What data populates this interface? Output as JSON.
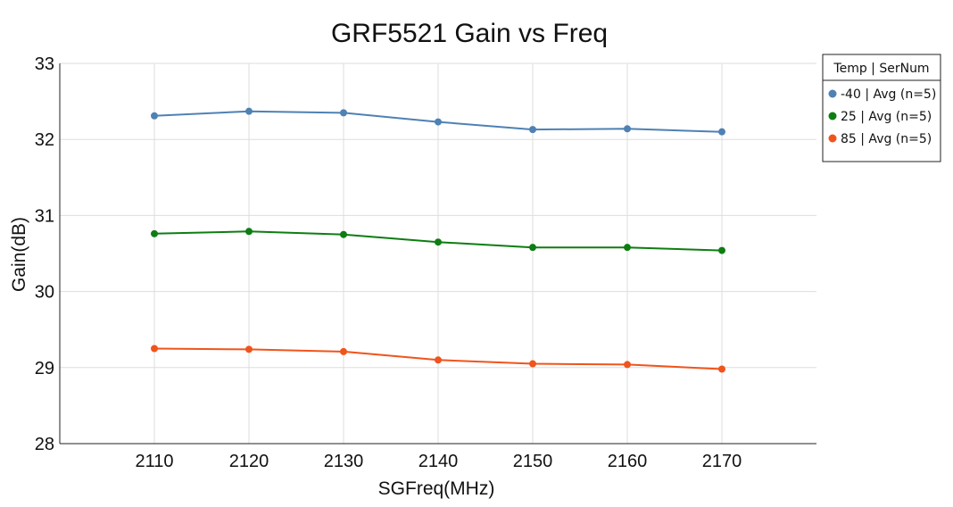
{
  "chart_data": {
    "type": "line",
    "title": "GRF5521 Gain vs Freq",
    "xlabel": "SGFreq(MHz)",
    "ylabel": "Gain(dB)",
    "x": [
      2110,
      2120,
      2130,
      2140,
      2150,
      2160,
      2170
    ],
    "xlim": [
      2100,
      2180
    ],
    "ylim": [
      28,
      33
    ],
    "xticks": [
      "2110",
      "2120",
      "2130",
      "2140",
      "2150",
      "2160",
      "2170"
    ],
    "yticks": [
      "28",
      "29",
      "30",
      "31",
      "32",
      "33"
    ],
    "grid": true,
    "legend_position": "top-right",
    "legend_title": "Temp | SerNum",
    "series": [
      {
        "name": "-40 | Avg (n=5)",
        "color": "#4e81b4",
        "values": [
          32.31,
          32.37,
          32.35,
          32.23,
          32.13,
          32.14,
          32.1
        ]
      },
      {
        "name": "25 | Avg (n=5)",
        "color": "#0e7d12",
        "values": [
          30.76,
          30.79,
          30.75,
          30.65,
          30.58,
          30.58,
          30.54
        ]
      },
      {
        "name": "85 | Avg (n=5)",
        "color": "#f0541c",
        "values": [
          29.25,
          29.24,
          29.21,
          29.1,
          29.05,
          29.04,
          28.98
        ]
      }
    ]
  }
}
